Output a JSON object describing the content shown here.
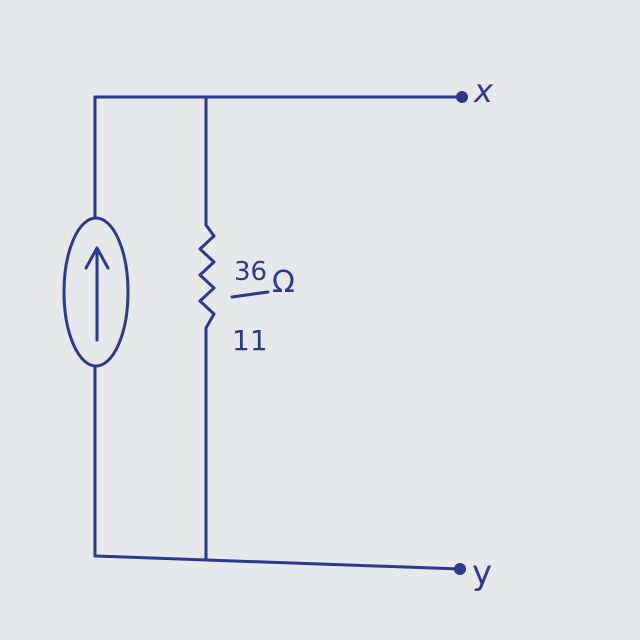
{
  "diagram": {
    "type": "circuit",
    "description_components": [
      "current-source",
      "resistor"
    ],
    "resistor_value": {
      "numerator": "36",
      "denominator": "11",
      "unit": "Ω"
    },
    "terminals": {
      "top": "x",
      "bottom": "y"
    },
    "colors": {
      "ink": "#2b3a8f",
      "background": "#e6e8ea"
    }
  }
}
